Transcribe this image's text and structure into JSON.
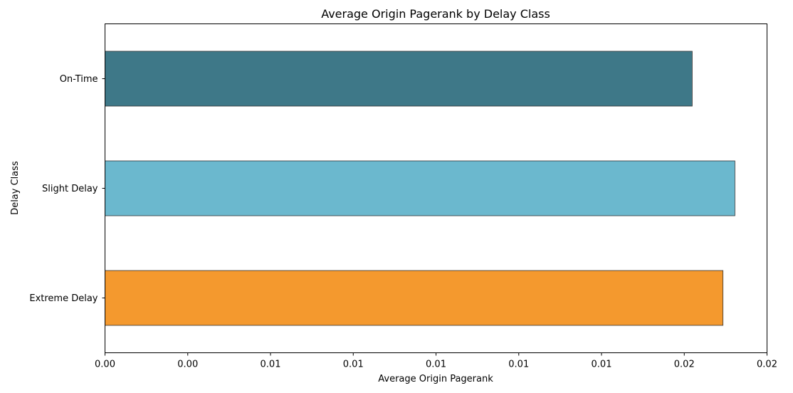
{
  "chart_data": {
    "type": "bar",
    "orientation": "horizontal",
    "title": "Average Origin Pagerank by Delay Class",
    "xlabel": "Average Origin Pagerank",
    "ylabel": "Delay Class",
    "categories": [
      "On-Time",
      "Slight Delay",
      "Extreme Delay"
    ],
    "values": [
      0.01774,
      0.01903,
      0.01867
    ],
    "colors": [
      "#3e7888",
      "#6bb8ce",
      "#f4992e"
    ],
    "edge_color": "#333333",
    "xlim": [
      0.0,
      0.02
    ],
    "x_ticks": [
      0.0,
      0.0025,
      0.005,
      0.0075,
      0.01,
      0.0125,
      0.015,
      0.0175,
      0.02
    ],
    "x_tick_labels": [
      "0.00",
      "0.00",
      "0.01",
      "0.01",
      "0.01",
      "0.01",
      "0.01",
      "0.02",
      "0.02"
    ],
    "grid": false,
    "legend": "none"
  }
}
